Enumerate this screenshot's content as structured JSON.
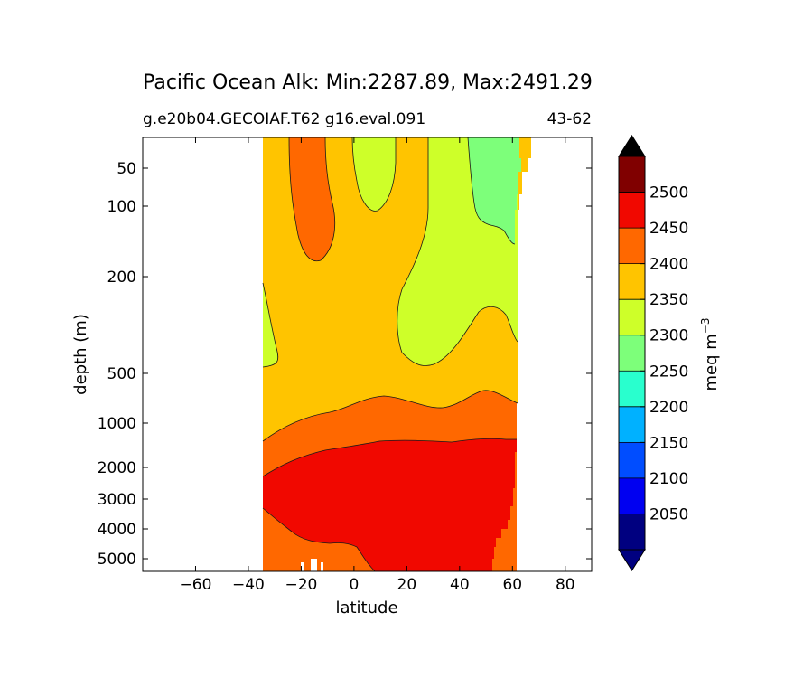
{
  "chart_data": {
    "type": "contour",
    "title": "Pacific Ocean Alk: Min:2287.89, Max:2491.29",
    "subtitle_left": "g.e20b04.GECOIAF.T62 g16.eval.091",
    "subtitle_right": "43-62",
    "xlabel": "latitude",
    "ylabel": "depth (m)",
    "xlim": [
      -80,
      90
    ],
    "ylim": [
      0,
      5500
    ],
    "x_ticks": [
      -60,
      -40,
      -20,
      0,
      20,
      40,
      60,
      80
    ],
    "x_tick_labels": [
      "−60",
      "−40",
      "−20",
      "0",
      "20",
      "40",
      "60",
      "80"
    ],
    "y_ticks": [
      50,
      100,
      200,
      500,
      1000,
      2000,
      3000,
      4000,
      5000
    ],
    "y_tick_labels": [
      "50",
      "100",
      "200",
      "500",
      "1000",
      "2000",
      "3000",
      "4000",
      "5000"
    ],
    "grid": false,
    "colorbar": {
      "label": "meq m",
      "label_superscript": "−3",
      "levels": [
        2000,
        2050,
        2100,
        2150,
        2200,
        2250,
        2300,
        2350,
        2400,
        2450,
        2500,
        2550
      ],
      "tick_values": [
        2050,
        2100,
        2150,
        2200,
        2250,
        2300,
        2350,
        2400,
        2450,
        2500
      ],
      "tick_labels": [
        "2050",
        "2100",
        "2150",
        "2200",
        "2250",
        "2300",
        "2350",
        "2400",
        "2450",
        "2500"
      ],
      "colors": [
        "#000080",
        "#0000f1",
        "#004dff",
        "#00b1ff",
        "#29ffce",
        "#7dff7a",
        "#ceff29",
        "#ffc400",
        "#ff6800",
        "#f10800",
        "#800000"
      ],
      "extend": "both"
    },
    "regions": [
      {
        "band": "2400-2450",
        "fill": "#ff6800"
      },
      {
        "band": "2350-2400",
        "fill": "#ffc400"
      },
      {
        "band": "2300-2350",
        "fill": "#ceff29"
      },
      {
        "band": "2250-2300",
        "fill": "#7dff7a"
      },
      {
        "band": "2450-2500",
        "fill": "#f10800"
      }
    ]
  }
}
